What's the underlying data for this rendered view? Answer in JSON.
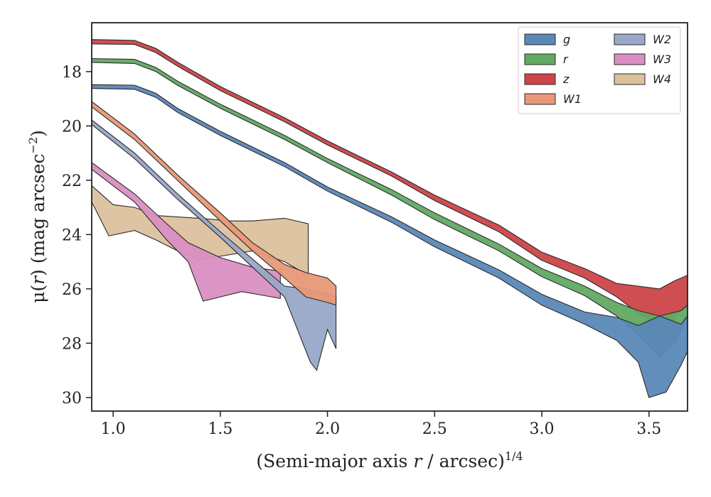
{
  "chart_data": {
    "type": "area",
    "xlabel_main": "(Semi-major axis ",
    "xlabel_var": "r",
    "xlabel_tail": " / arcsec)",
    "xlabel_sup": "1/4",
    "ylabel_pre": "μ(",
    "ylabel_var": "r",
    "ylabel_post": ") (mag arcsec",
    "ylabel_sup": "−2",
    "ylabel_close": ")",
    "xlim": [
      0.9,
      3.68
    ],
    "ylim": [
      30.5,
      16.2
    ],
    "y_inverted": true,
    "xticks": [
      1.0,
      1.5,
      2.0,
      2.5,
      3.0,
      3.5
    ],
    "xtick_labels": [
      "1.0",
      "1.5",
      "2.0",
      "2.5",
      "3.0",
      "3.5"
    ],
    "yticks": [
      18,
      20,
      22,
      24,
      26,
      28,
      30
    ],
    "ytick_labels": [
      "18",
      "20",
      "22",
      "24",
      "26",
      "28",
      "30"
    ],
    "legend_position": "top-right",
    "legend_columns": 2,
    "series": [
      {
        "name": "g",
        "color": "#5a88b8",
        "upper": [
          [
            0.9,
            18.48
          ],
          [
            1.1,
            18.5
          ],
          [
            1.2,
            18.8
          ],
          [
            1.3,
            19.35
          ],
          [
            1.5,
            20.2
          ],
          [
            1.8,
            21.35
          ],
          [
            2.0,
            22.25
          ],
          [
            2.3,
            23.35
          ],
          [
            2.5,
            24.2
          ],
          [
            2.8,
            25.3
          ],
          [
            3.0,
            26.2
          ],
          [
            3.2,
            26.85
          ],
          [
            3.35,
            27.05
          ],
          [
            3.45,
            27.35
          ],
          [
            3.55,
            27.0
          ],
          [
            3.65,
            27.3
          ],
          [
            3.68,
            27.0
          ]
        ],
        "lower": [
          [
            0.9,
            18.62
          ],
          [
            1.1,
            18.65
          ],
          [
            1.2,
            18.95
          ],
          [
            1.3,
            19.5
          ],
          [
            1.5,
            20.35
          ],
          [
            1.8,
            21.5
          ],
          [
            2.0,
            22.4
          ],
          [
            2.3,
            23.55
          ],
          [
            2.5,
            24.45
          ],
          [
            2.8,
            25.6
          ],
          [
            3.0,
            26.6
          ],
          [
            3.2,
            27.3
          ],
          [
            3.35,
            27.9
          ],
          [
            3.45,
            28.7
          ],
          [
            3.5,
            30.0
          ],
          [
            3.58,
            29.8
          ],
          [
            3.65,
            28.8
          ],
          [
            3.68,
            28.3
          ]
        ]
      },
      {
        "name": "r",
        "color": "#62a964",
        "upper": [
          [
            0.9,
            17.52
          ],
          [
            1.1,
            17.55
          ],
          [
            1.2,
            17.85
          ],
          [
            1.3,
            18.35
          ],
          [
            1.5,
            19.2
          ],
          [
            1.8,
            20.35
          ],
          [
            2.0,
            21.2
          ],
          [
            2.3,
            22.35
          ],
          [
            2.5,
            23.2
          ],
          [
            2.8,
            24.35
          ],
          [
            3.0,
            25.25
          ],
          [
            3.2,
            25.9
          ],
          [
            3.35,
            26.5
          ],
          [
            3.45,
            26.8
          ],
          [
            3.55,
            27.0
          ],
          [
            3.65,
            26.8
          ],
          [
            3.68,
            26.6
          ]
        ],
        "lower": [
          [
            0.9,
            17.66
          ],
          [
            1.1,
            17.7
          ],
          [
            1.2,
            18.0
          ],
          [
            1.3,
            18.5
          ],
          [
            1.5,
            19.35
          ],
          [
            1.8,
            20.5
          ],
          [
            2.0,
            21.35
          ],
          [
            2.3,
            22.55
          ],
          [
            2.5,
            23.45
          ],
          [
            2.8,
            24.6
          ],
          [
            3.0,
            25.55
          ],
          [
            3.2,
            26.25
          ],
          [
            3.35,
            27.0
          ],
          [
            3.45,
            27.7
          ],
          [
            3.55,
            28.5
          ],
          [
            3.62,
            28.0
          ],
          [
            3.68,
            27.0
          ]
        ]
      },
      {
        "name": "z",
        "color": "#cc4548",
        "upper": [
          [
            0.9,
            16.82
          ],
          [
            1.1,
            16.85
          ],
          [
            1.2,
            17.15
          ],
          [
            1.3,
            17.65
          ],
          [
            1.5,
            18.55
          ],
          [
            1.8,
            19.7
          ],
          [
            2.0,
            20.55
          ],
          [
            2.3,
            21.7
          ],
          [
            2.5,
            22.55
          ],
          [
            2.8,
            23.65
          ],
          [
            3.0,
            24.65
          ],
          [
            3.2,
            25.25
          ],
          [
            3.35,
            25.8
          ],
          [
            3.45,
            25.9
          ],
          [
            3.55,
            26.0
          ],
          [
            3.62,
            25.7
          ],
          [
            3.68,
            25.5
          ]
        ],
        "lower": [
          [
            0.9,
            16.98
          ],
          [
            1.1,
            17.0
          ],
          [
            1.2,
            17.3
          ],
          [
            1.3,
            17.8
          ],
          [
            1.5,
            18.7
          ],
          [
            1.8,
            19.85
          ],
          [
            2.0,
            20.7
          ],
          [
            2.3,
            21.85
          ],
          [
            2.5,
            22.75
          ],
          [
            2.8,
            23.9
          ],
          [
            3.0,
            24.95
          ],
          [
            3.2,
            25.6
          ],
          [
            3.35,
            26.3
          ],
          [
            3.45,
            26.9
          ],
          [
            3.52,
            27.2
          ],
          [
            3.57,
            28.4
          ],
          [
            3.62,
            27.0
          ],
          [
            3.68,
            26.6
          ]
        ]
      },
      {
        "name": "W1",
        "color": "#e89878",
        "upper": [
          [
            0.9,
            19.1
          ],
          [
            1.1,
            20.3
          ],
          [
            1.3,
            21.8
          ],
          [
            1.5,
            23.2
          ],
          [
            1.65,
            24.3
          ],
          [
            1.8,
            25.1
          ],
          [
            1.9,
            25.4
          ],
          [
            2.0,
            25.6
          ],
          [
            2.04,
            25.9
          ]
        ],
        "lower": [
          [
            0.9,
            19.3
          ],
          [
            1.1,
            20.5
          ],
          [
            1.3,
            22.0
          ],
          [
            1.5,
            23.5
          ],
          [
            1.65,
            24.6
          ],
          [
            1.8,
            25.6
          ],
          [
            1.9,
            26.3
          ],
          [
            2.0,
            26.5
          ],
          [
            2.04,
            26.6
          ]
        ]
      },
      {
        "name": "W2",
        "color": "#99a8c8",
        "upper": [
          [
            0.9,
            19.78
          ],
          [
            1.1,
            21.0
          ],
          [
            1.3,
            22.5
          ],
          [
            1.5,
            23.9
          ],
          [
            1.65,
            24.9
          ],
          [
            1.8,
            25.9
          ],
          [
            1.9,
            26.0
          ],
          [
            2.0,
            26.2
          ],
          [
            2.04,
            26.3
          ]
        ],
        "lower": [
          [
            0.9,
            19.95
          ],
          [
            1.1,
            21.2
          ],
          [
            1.3,
            22.7
          ],
          [
            1.5,
            24.1
          ],
          [
            1.65,
            25.2
          ],
          [
            1.8,
            26.3
          ],
          [
            1.92,
            28.7
          ],
          [
            1.95,
            29.0
          ],
          [
            2.0,
            27.5
          ],
          [
            2.04,
            28.2
          ]
        ]
      },
      {
        "name": "W3",
        "color": "#d98fc2",
        "upper": [
          [
            0.9,
            21.35
          ],
          [
            1.1,
            22.5
          ],
          [
            1.25,
            23.6
          ],
          [
            1.35,
            24.3
          ],
          [
            1.5,
            24.85
          ],
          [
            1.65,
            25.2
          ],
          [
            1.78,
            25.35
          ]
        ],
        "lower": [
          [
            0.9,
            21.6
          ],
          [
            1.1,
            22.8
          ],
          [
            1.25,
            24.2
          ],
          [
            1.35,
            25.0
          ],
          [
            1.42,
            26.45
          ],
          [
            1.6,
            26.1
          ],
          [
            1.78,
            26.35
          ]
        ]
      },
      {
        "name": "W4",
        "color": "#dcc19d",
        "upper": [
          [
            0.9,
            22.2
          ],
          [
            1.0,
            22.9
          ],
          [
            1.1,
            23.0
          ],
          [
            1.2,
            23.3
          ],
          [
            1.4,
            23.4
          ],
          [
            1.55,
            23.5
          ],
          [
            1.65,
            23.5
          ],
          [
            1.8,
            23.4
          ],
          [
            1.91,
            23.6
          ]
        ],
        "lower": [
          [
            0.9,
            22.8
          ],
          [
            0.98,
            24.05
          ],
          [
            1.1,
            23.85
          ],
          [
            1.2,
            24.2
          ],
          [
            1.3,
            24.6
          ],
          [
            1.4,
            24.9
          ],
          [
            1.5,
            24.8
          ],
          [
            1.65,
            24.6
          ],
          [
            1.8,
            25.0
          ],
          [
            1.91,
            25.5
          ]
        ]
      }
    ]
  }
}
